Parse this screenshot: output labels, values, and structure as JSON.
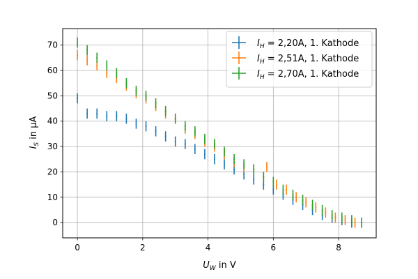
{
  "chart_data": {
    "type": "scatter",
    "xlabel": {
      "main": "U",
      "sub": "W",
      "rest": " in V"
    },
    "ylabel": {
      "main": "I",
      "sub": "S",
      "rest": " in µA"
    },
    "xlim": [
      -0.45,
      9.15
    ],
    "ylim": [
      -6,
      76.5
    ],
    "xticks": [
      0,
      2,
      4,
      6,
      8
    ],
    "yticks": [
      0,
      10,
      20,
      30,
      40,
      50,
      60,
      70
    ],
    "grid": true,
    "legend_position": "top-right",
    "error_bars": {
      "x": 0.02,
      "y": 2
    },
    "series": [
      {
        "name": "= 2,20A, 1. Kathode",
        "label_prefix": {
          "main": "I",
          "sub": "H"
        },
        "color": "#1f77b4",
        "points": [
          [
            0.0,
            49
          ],
          [
            0.3,
            43
          ],
          [
            0.6,
            43
          ],
          [
            0.9,
            42
          ],
          [
            1.2,
            42
          ],
          [
            1.5,
            41
          ],
          [
            1.8,
            39
          ],
          [
            2.1,
            38
          ],
          [
            2.4,
            36
          ],
          [
            2.7,
            34
          ],
          [
            3.0,
            32
          ],
          [
            3.3,
            31
          ],
          [
            3.6,
            29
          ],
          [
            3.9,
            27
          ],
          [
            4.2,
            25
          ],
          [
            4.5,
            23
          ],
          [
            4.8,
            21
          ],
          [
            5.1,
            19
          ],
          [
            5.4,
            17
          ],
          [
            5.7,
            15
          ],
          [
            6.0,
            13
          ],
          [
            6.3,
            11
          ],
          [
            6.6,
            9
          ],
          [
            6.9,
            7
          ],
          [
            7.2,
            5
          ],
          [
            7.5,
            3
          ],
          [
            7.8,
            2
          ],
          [
            8.1,
            1
          ],
          [
            8.4,
            0
          ]
        ]
      },
      {
        "name": "= 2,51A, 1. Kathode",
        "label_prefix": {
          "main": "I",
          "sub": "H"
        },
        "color": "#ff7f0e",
        "points": [
          [
            0.0,
            66
          ],
          [
            0.3,
            64
          ],
          [
            0.6,
            62
          ],
          [
            0.9,
            59
          ],
          [
            1.2,
            57
          ],
          [
            1.5,
            54
          ],
          [
            1.8,
            51
          ],
          [
            2.1,
            49
          ],
          [
            2.4,
            46
          ],
          [
            2.7,
            43
          ],
          [
            3.0,
            41
          ],
          [
            3.3,
            37
          ],
          [
            3.6,
            35
          ],
          [
            3.9,
            32
          ],
          [
            4.2,
            30
          ],
          [
            4.5,
            27
          ],
          [
            4.8,
            24
          ],
          [
            5.1,
            22
          ],
          [
            5.4,
            21
          ],
          [
            5.7,
            18
          ],
          [
            5.8,
            22
          ],
          [
            6.1,
            15
          ],
          [
            6.4,
            13
          ],
          [
            6.7,
            10
          ],
          [
            7.0,
            8
          ],
          [
            7.3,
            6
          ],
          [
            7.6,
            4
          ],
          [
            7.9,
            2
          ],
          [
            8.2,
            1
          ],
          [
            8.5,
            0
          ]
        ]
      },
      {
        "name": "= 2,70A, 1. Kathode",
        "label_prefix": {
          "main": "I",
          "sub": "H"
        },
        "color": "#2ca02c",
        "points": [
          [
            0.0,
            71
          ],
          [
            0.3,
            68
          ],
          [
            0.6,
            65
          ],
          [
            0.9,
            62
          ],
          [
            1.2,
            59
          ],
          [
            1.5,
            55
          ],
          [
            1.8,
            52
          ],
          [
            2.1,
            50
          ],
          [
            2.4,
            47
          ],
          [
            2.7,
            44
          ],
          [
            3.0,
            41
          ],
          [
            3.3,
            38
          ],
          [
            3.6,
            36
          ],
          [
            3.9,
            33
          ],
          [
            4.2,
            31
          ],
          [
            4.5,
            28
          ],
          [
            4.8,
            25
          ],
          [
            5.1,
            23
          ],
          [
            5.4,
            21
          ],
          [
            5.7,
            18
          ],
          [
            6.0,
            16
          ],
          [
            6.3,
            13
          ],
          [
            6.6,
            11
          ],
          [
            6.9,
            9
          ],
          [
            7.2,
            7
          ],
          [
            7.5,
            5
          ],
          [
            7.8,
            3
          ],
          [
            8.1,
            2
          ],
          [
            8.4,
            1
          ],
          [
            8.7,
            0
          ]
        ]
      }
    ]
  }
}
